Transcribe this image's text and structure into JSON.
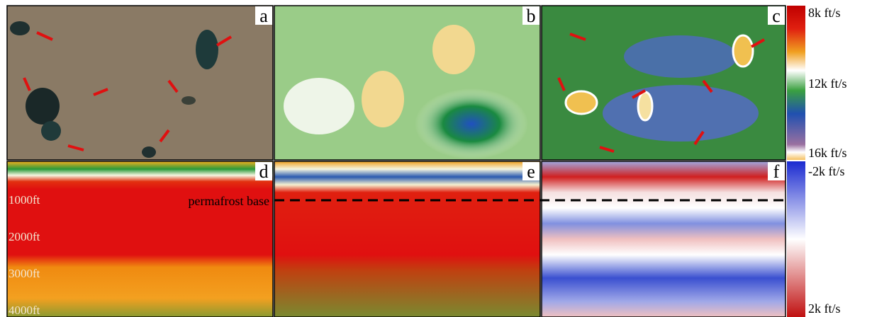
{
  "panels": [
    {
      "label": "a"
    },
    {
      "label": "b"
    },
    {
      "label": "c"
    },
    {
      "label": "d"
    },
    {
      "label": "e"
    },
    {
      "label": "f"
    }
  ],
  "colorbar_top": {
    "labels": [
      "8k ft/s",
      "12k ft/s",
      "16k ft/s"
    ]
  },
  "colorbar_bottom": {
    "labels": [
      "-2k ft/s",
      "2k ft/s"
    ]
  },
  "depth_labels": [
    "1000ft",
    "2000ft",
    "3000ft",
    "4000ft"
  ],
  "annotation": "permafrost base"
}
